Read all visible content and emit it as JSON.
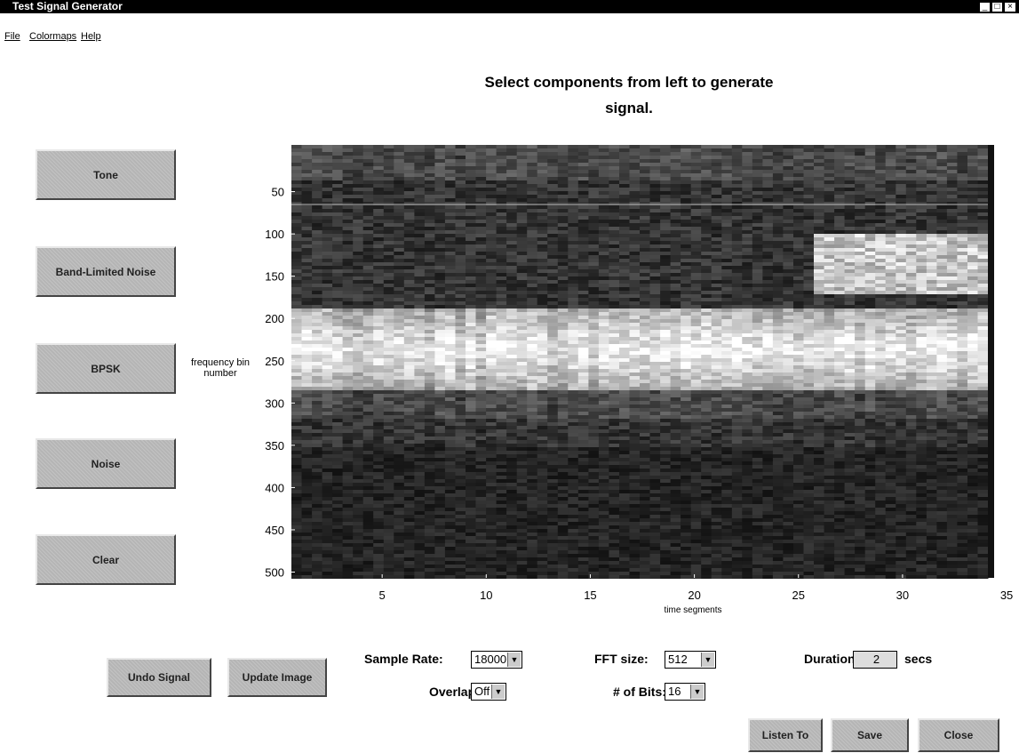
{
  "window": {
    "title": "Test Signal Generator"
  },
  "menu": [
    "File",
    "Colormaps",
    "Help"
  ],
  "instruction": "Select components from left to generate signal.",
  "component_buttons": [
    "Tone",
    "Band-Limited Noise",
    "BPSK",
    "Noise",
    "Clear"
  ],
  "spectrogram": {
    "y_label": "frequency bin number",
    "x_label": "time segments",
    "yticks": [
      50,
      100,
      150,
      200,
      250,
      300,
      350,
      400,
      450,
      500
    ],
    "xticks": [
      5,
      10,
      15,
      20,
      25,
      30,
      35
    ]
  },
  "controls": {
    "undo": "Undo Signal",
    "update": "Update Image",
    "sample_rate": {
      "label": "Sample Rate:",
      "value": "18000"
    },
    "overlap": {
      "label": "Overlap:",
      "value": "Off"
    },
    "fft_size": {
      "label": "FFT size:",
      "value": "512"
    },
    "bits": {
      "label": "# of Bits:",
      "value": "16"
    },
    "duration": {
      "label": "Duration:",
      "value": "2",
      "unit": "secs"
    }
  },
  "actions": [
    "Listen To",
    "Save",
    "Close"
  ]
}
